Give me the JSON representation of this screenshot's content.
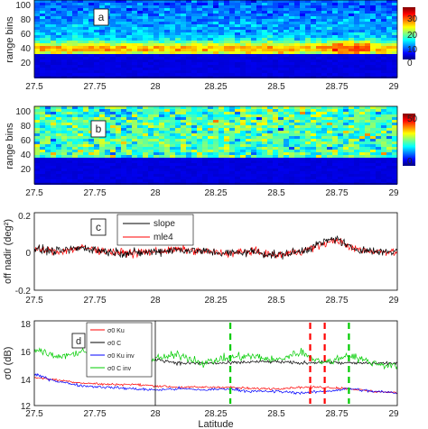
{
  "chart_data": [
    {
      "panel_label": "a",
      "type": "heatmap",
      "ylabel": "range bins",
      "xlim": [
        27.5,
        29
      ],
      "xticks": [
        "27.5",
        "27.75",
        "28",
        "28.25",
        "28.5",
        "28.75",
        "29"
      ],
      "ylim": [
        0,
        105
      ],
      "yticks": [
        "20",
        "40",
        "60",
        "80",
        "100"
      ],
      "colorbar": {
        "ticks": [
          "30",
          "20",
          "10",
          "0"
        ],
        "range": [
          0,
          30
        ]
      },
      "colormap": [
        "#00007f",
        "#0000ff",
        "#007fff",
        "#00ffff",
        "#7fff7f",
        "#ffff00",
        "#ff7f00",
        "#ff0000",
        "#7f0000"
      ],
      "noise_floor_top_bin": 33,
      "signal_peak_bin": 40
    },
    {
      "panel_label": "b",
      "type": "heatmap",
      "ylabel": "range bins",
      "xlim": [
        27.5,
        29
      ],
      "xticks": [
        "27.5",
        "27.75",
        "28",
        "28.25",
        "28.5",
        "28.75",
        "29"
      ],
      "ylim": [
        0,
        105
      ],
      "yticks": [
        "20",
        "40",
        "60",
        "80",
        "100"
      ],
      "colorbar": {
        "ticks": [
          "50",
          "0"
        ],
        "range": [
          0,
          50
        ]
      },
      "colormap": [
        "#00007f",
        "#0000ff",
        "#007fff",
        "#00ffff",
        "#7fff7f",
        "#ffff00",
        "#ff7f00",
        "#ff0000",
        "#7f0000"
      ],
      "noise_floor_top_bin": 35
    },
    {
      "panel_label": "c",
      "type": "line",
      "ylabel": "off nadir (deg²)",
      "xlim": [
        27.5,
        29
      ],
      "xticks": [
        "27.5",
        "27.75",
        "28",
        "28.25",
        "28.5",
        "28.75",
        "29"
      ],
      "ylim": [
        -0.2,
        0.2
      ],
      "yticks": [
        "0.2",
        "0",
        "-0.2"
      ],
      "series": [
        {
          "name": "slope",
          "color": "#000000",
          "x": [
            27.5,
            27.6,
            27.7,
            27.8,
            27.9,
            28.0,
            28.1,
            28.2,
            28.3,
            28.4,
            28.5,
            28.6,
            28.7,
            28.75,
            28.8,
            28.9,
            29.0
          ],
          "y": [
            0.01,
            0.0,
            0.02,
            0.0,
            -0.01,
            0.0,
            0.01,
            0.0,
            -0.01,
            0.0,
            -0.02,
            0.0,
            0.05,
            0.07,
            0.02,
            0.0,
            0.0
          ]
        },
        {
          "name": "mle4",
          "color": "#ff0000",
          "x": [
            27.5,
            27.6,
            27.7,
            27.8,
            27.9,
            28.0,
            28.1,
            28.2,
            28.3,
            28.4,
            28.5,
            28.6,
            28.7,
            28.75,
            28.8,
            28.9,
            29.0
          ],
          "y": [
            0.01,
            0.0,
            0.02,
            0.0,
            -0.01,
            0.0,
            0.01,
            0.0,
            -0.01,
            0.0,
            -0.02,
            0.0,
            0.04,
            0.06,
            0.02,
            0.0,
            0.0
          ]
        }
      ]
    },
    {
      "panel_label": "d",
      "type": "line",
      "xlabel": "Latitude",
      "ylabel": "σ0 (dB)",
      "xlim": [
        27.5,
        29
      ],
      "xticks": [
        "27.5",
        "27.75",
        "28",
        "28.25",
        "28.5",
        "28.75",
        "29"
      ],
      "ylim": [
        12,
        18
      ],
      "yticks": [
        "18",
        "16",
        "14",
        "12"
      ],
      "legend_location": "top-left",
      "series": [
        {
          "name": "σ0 Ku",
          "color": "#ff0000",
          "x": [
            27.5,
            27.6,
            27.7,
            27.8,
            27.9,
            28.0,
            28.1,
            28.2,
            28.3,
            28.4,
            28.5,
            28.6,
            28.7,
            28.8,
            28.9,
            29.0
          ],
          "y": [
            14.0,
            13.8,
            13.6,
            13.5,
            13.5,
            13.4,
            13.3,
            13.3,
            13.3,
            13.2,
            13.2,
            13.3,
            13.3,
            13.2,
            13.0,
            12.9
          ]
        },
        {
          "name": "σ0 C",
          "color": "#000000",
          "x": [
            28.0,
            28.1,
            28.2,
            28.3,
            28.4,
            28.5,
            28.6,
            28.7,
            28.8,
            28.9,
            29.0
          ],
          "y": [
            15.3,
            15.0,
            15.0,
            15.0,
            15.1,
            15.1,
            15.0,
            15.1,
            15.0,
            15.0,
            15.0
          ]
        },
        {
          "name": "σ0 Ku inv",
          "color": "#0000ff",
          "x": [
            27.5,
            27.6,
            27.7,
            27.8,
            27.9,
            28.0,
            28.1,
            28.2,
            28.3,
            28.4,
            28.5,
            28.6,
            28.7,
            28.8,
            28.9,
            29.0
          ],
          "y": [
            14.2,
            13.7,
            13.4,
            13.3,
            13.2,
            13.1,
            13.2,
            13.1,
            13.2,
            13.0,
            13.0,
            12.9,
            13.0,
            13.2,
            13.0,
            12.9
          ]
        },
        {
          "name": "σ0 C inv",
          "color": "#00cc00",
          "x": [
            27.5,
            27.6,
            27.7,
            27.8,
            27.9,
            28.0,
            28.1,
            28.2,
            28.3,
            28.4,
            28.5,
            28.6,
            28.7,
            28.8,
            28.9,
            29.0
          ],
          "y": [
            16.0,
            15.5,
            15.8,
            16.5,
            15.5,
            15.3,
            15.6,
            15.0,
            15.4,
            15.5,
            15.2,
            15.8,
            15.0,
            15.6,
            15.0,
            14.8
          ]
        }
      ],
      "vertical_lines": [
        {
          "x": 28.31,
          "color": "#00cc00"
        },
        {
          "x": 28.64,
          "color": "#ff0000"
        },
        {
          "x": 28.7,
          "color": "#ff0000"
        },
        {
          "x": 28.8,
          "color": "#00cc00"
        }
      ]
    }
  ]
}
